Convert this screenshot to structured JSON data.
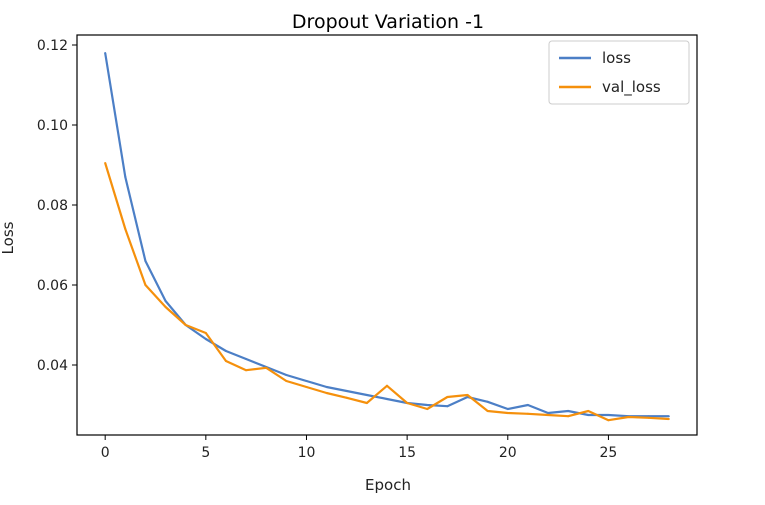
{
  "chart_data": {
    "type": "line",
    "title": "Dropout Variation -1",
    "xlabel": "Epoch",
    "ylabel": "Loss",
    "xlim": [
      -1.4,
      29.4
    ],
    "ylim": [
      0.0225,
      0.1225
    ],
    "xticks": [
      0,
      5,
      10,
      15,
      20,
      25
    ],
    "yticks": [
      0.04,
      0.06,
      0.08,
      0.1,
      0.12
    ],
    "ytick_labels": [
      "0.04",
      "0.06",
      "0.08",
      "0.10",
      "0.12"
    ],
    "grid": false,
    "legend_position": "top-right",
    "x": [
      0,
      1,
      2,
      3,
      4,
      5,
      6,
      7,
      8,
      9,
      10,
      11,
      12,
      13,
      14,
      15,
      16,
      17,
      18,
      19,
      20,
      21,
      22,
      23,
      24,
      25,
      26,
      27,
      28
    ],
    "series": [
      {
        "name": "loss",
        "color": "#4c7fc6",
        "values": [
          0.118,
          0.087,
          0.066,
          0.056,
          0.05,
          0.0465,
          0.0435,
          0.0415,
          0.0395,
          0.0375,
          0.036,
          0.0345,
          0.0335,
          0.0325,
          0.0315,
          0.0305,
          0.03,
          0.0297,
          0.032,
          0.0308,
          0.029,
          0.03,
          0.028,
          0.0285,
          0.0275,
          0.0275,
          0.0272,
          0.0272,
          0.0272
        ]
      },
      {
        "name": "val_loss",
        "color": "#f5900c",
        "values": [
          0.0905,
          0.074,
          0.06,
          0.0545,
          0.05,
          0.048,
          0.041,
          0.0387,
          0.0393,
          0.036,
          0.0345,
          0.033,
          0.0318,
          0.0305,
          0.0348,
          0.0305,
          0.029,
          0.032,
          0.0325,
          0.0285,
          0.028,
          0.0278,
          0.0275,
          0.0272,
          0.0285,
          0.0262,
          0.027,
          0.0268,
          0.0265
        ]
      }
    ]
  }
}
